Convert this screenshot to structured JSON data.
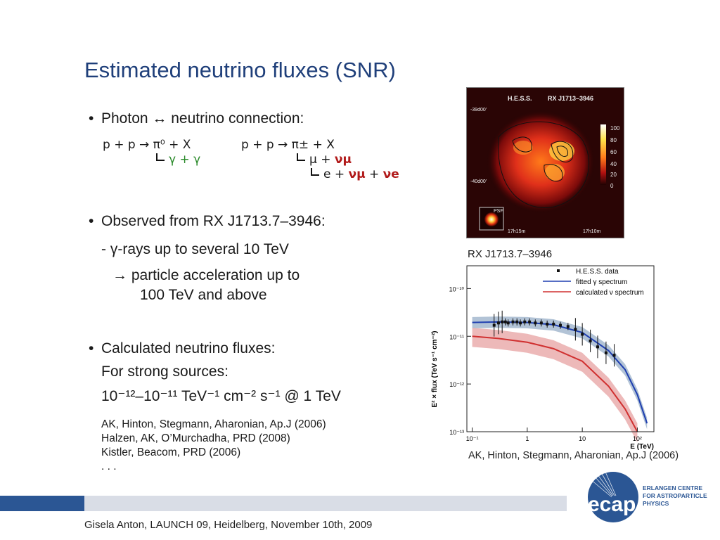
{
  "slide": {
    "title": "Estimated neutrino fluxes (SNR)",
    "bullet1": "Photon ↔ neutrino connection:",
    "reaction_pi0": "p + p → π⁰ + X",
    "decay_pi0": "γ + γ",
    "reaction_pic": "p + p → π± + X",
    "decay_pic_mu": "μ + ",
    "decay_pic_numu": "νμ",
    "decay_mu_e": "e + ",
    "decay_mu_numu": "νμ",
    "decay_mu_plus": " + ",
    "decay_mu_nue": "νe",
    "bullet2": "Observed from RX J1713.7–3946:",
    "bullet2_sub": "- γ-rays up to several 10 TeV",
    "bullet2_sub2_line1": "→  particle acceleration up to",
    "bullet2_sub2_line2": "100 TeV and above",
    "bullet3": "Calculated neutrino fluxes:",
    "bullet3_line2": "For strong sources:",
    "flux_range": "10⁻¹²–10⁻¹¹ TeV⁻¹ cm⁻² s⁻¹ @ 1 TeV",
    "refs": [
      "AK, Hinton, Stegmann, Aharonian, Ap.J (2006)",
      "Halzen, AK, O’Murchadha, PRD (2008)",
      "Kistler, Beacom, PRD (2006)",
      ". . ."
    ]
  },
  "hess_map": {
    "label": "H.E.S.S.",
    "source": "RX J1713–3946",
    "dec_top": "-39d00'",
    "dec_bottom": "-40d00'",
    "ra_left": "17h15m",
    "ra_right": "17h10m",
    "psf_label": "PSF",
    "colorbar_ticks": [
      "100",
      "80",
      "60",
      "40",
      "20",
      "0"
    ],
    "caption": "RX J1713.7–3946"
  },
  "spectrum_plot": {
    "legend": [
      "H.E.S.S. data",
      "fitted γ spectrum",
      "calculated ν spectrum"
    ],
    "ylabel": "E² × flux (TeV s⁻¹ cm⁻²)",
    "xlabel": "E (TeV)",
    "yticks": [
      "10⁻¹⁰",
      "10⁻¹¹",
      "10⁻¹²",
      "10⁻¹³"
    ],
    "xticks": [
      "10⁻¹",
      "1",
      "10",
      "10²"
    ],
    "credit": "AK, Hinton, Stegmann, Aharonian, Ap.J (2006)",
    "colors": {
      "data": "#111111",
      "gamma": "#1f3fb0",
      "gamma_band": "#9fb4cc",
      "nu": "#d03030",
      "nu_band": "#e8a8a8"
    }
  },
  "chart_data": {
    "type": "scatter",
    "title": "",
    "xlabel": "E (TeV)",
    "ylabel": "E² × flux (TeV s⁻¹ cm⁻²)",
    "xscale": "log",
    "yscale": "log",
    "xlim": [
      0.08,
      200
    ],
    "ylim": [
      1e-13,
      3e-10
    ],
    "series": [
      {
        "name": "H.E.S.S. data",
        "x": [
          0.25,
          0.3,
          0.35,
          0.4,
          0.45,
          0.55,
          0.65,
          0.75,
          0.9,
          1.1,
          1.4,
          1.8,
          2.3,
          3.0,
          4.0,
          5.5,
          7.5,
          10,
          14,
          19,
          27,
          38
        ],
        "y": [
          1.7e-11,
          1.9e-11,
          2e-11,
          2e-11,
          1.9e-11,
          2e-11,
          2e-11,
          1.9e-11,
          2e-11,
          2e-11,
          1.9e-11,
          1.9e-11,
          1.8e-11,
          1.8e-11,
          1.7e-11,
          1.6e-11,
          1.4e-11,
          1.1e-11,
          8e-12,
          6e-12,
          4.5e-12,
          4e-12
        ]
      },
      {
        "name": "fitted γ spectrum",
        "x": [
          0.1,
          0.3,
          1,
          3,
          10,
          30,
          60,
          100,
          150
        ],
        "y": [
          1.95e-11,
          2e-11,
          1.95e-11,
          1.75e-11,
          1.2e-11,
          5e-12,
          2e-12,
          6e-13,
          1.5e-13
        ]
      },
      {
        "name": "calculated ν spectrum",
        "x": [
          0.1,
          0.3,
          1,
          3,
          10,
          30,
          60,
          100
        ],
        "y": [
          1e-11,
          9e-12,
          7.5e-12,
          5.5e-12,
          3e-12,
          9e-13,
          3e-13,
          1e-13
        ]
      }
    ],
    "legend_position": "top-right"
  },
  "footer": {
    "text": "Gisela Anton,   LAUNCH 09,   Heidelberg,  November 10th, 2009",
    "logo_word": "ecap",
    "logo_line1": "ERLANGEN CENTRE",
    "logo_line2": "FOR ASTROPARTICLE",
    "logo_line3": "PHYSICS"
  }
}
